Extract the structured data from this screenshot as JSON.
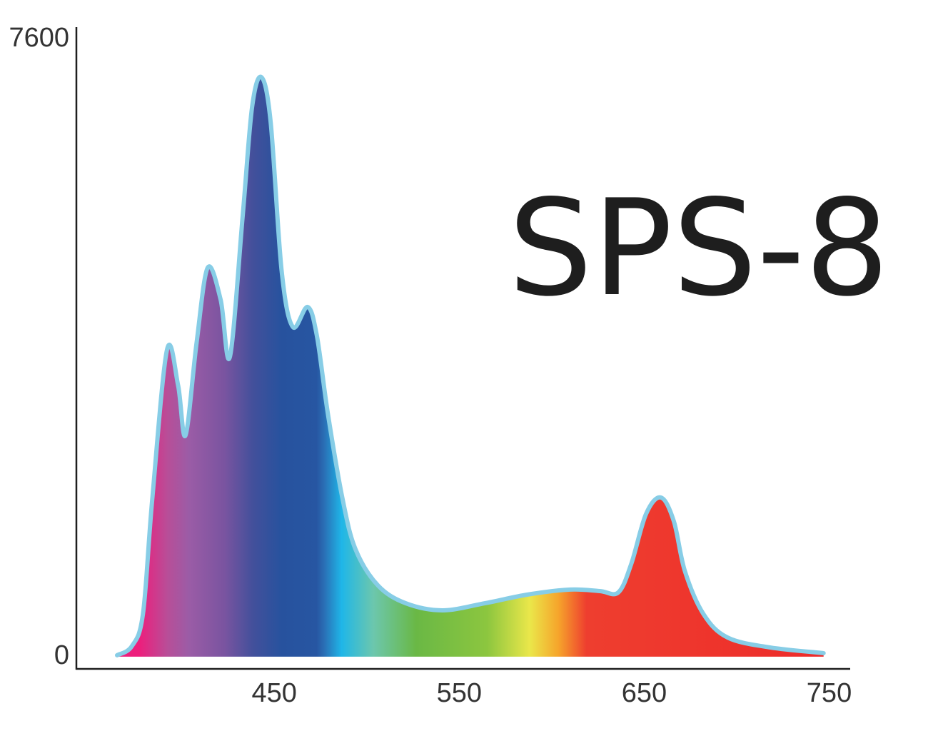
{
  "chart_data": {
    "type": "area",
    "title": "SPS-8",
    "x": [
      365,
      373,
      379,
      384,
      392,
      398,
      402,
      408,
      414,
      421,
      426,
      433,
      438,
      443,
      448,
      454,
      460,
      468,
      473,
      479,
      487,
      494,
      506,
      521,
      541,
      564,
      587,
      610,
      626,
      636,
      643,
      651,
      659,
      666,
      672,
      682,
      695,
      718,
      747
    ],
    "series": [
      {
        "color": "#87cde6",
        "values": [
          18,
          130,
          527,
          1933,
          3779,
          3340,
          2724,
          3866,
          4789,
          4394,
          3691,
          5448,
          6766,
          7135,
          6590,
          4745,
          4060,
          4306,
          3954,
          2988,
          1933,
          1318,
          879,
          659,
          571,
          659,
          765,
          826,
          808,
          791,
          1142,
          1757,
          1960,
          1670,
          1054,
          527,
          237,
          114,
          44
        ]
      }
    ],
    "xlim": [
      343,
      761
    ],
    "xticks": [
      450,
      550,
      650,
      750
    ],
    "ylim": [
      -150,
      7750
    ],
    "yticks": [
      0,
      7600
    ]
  }
}
